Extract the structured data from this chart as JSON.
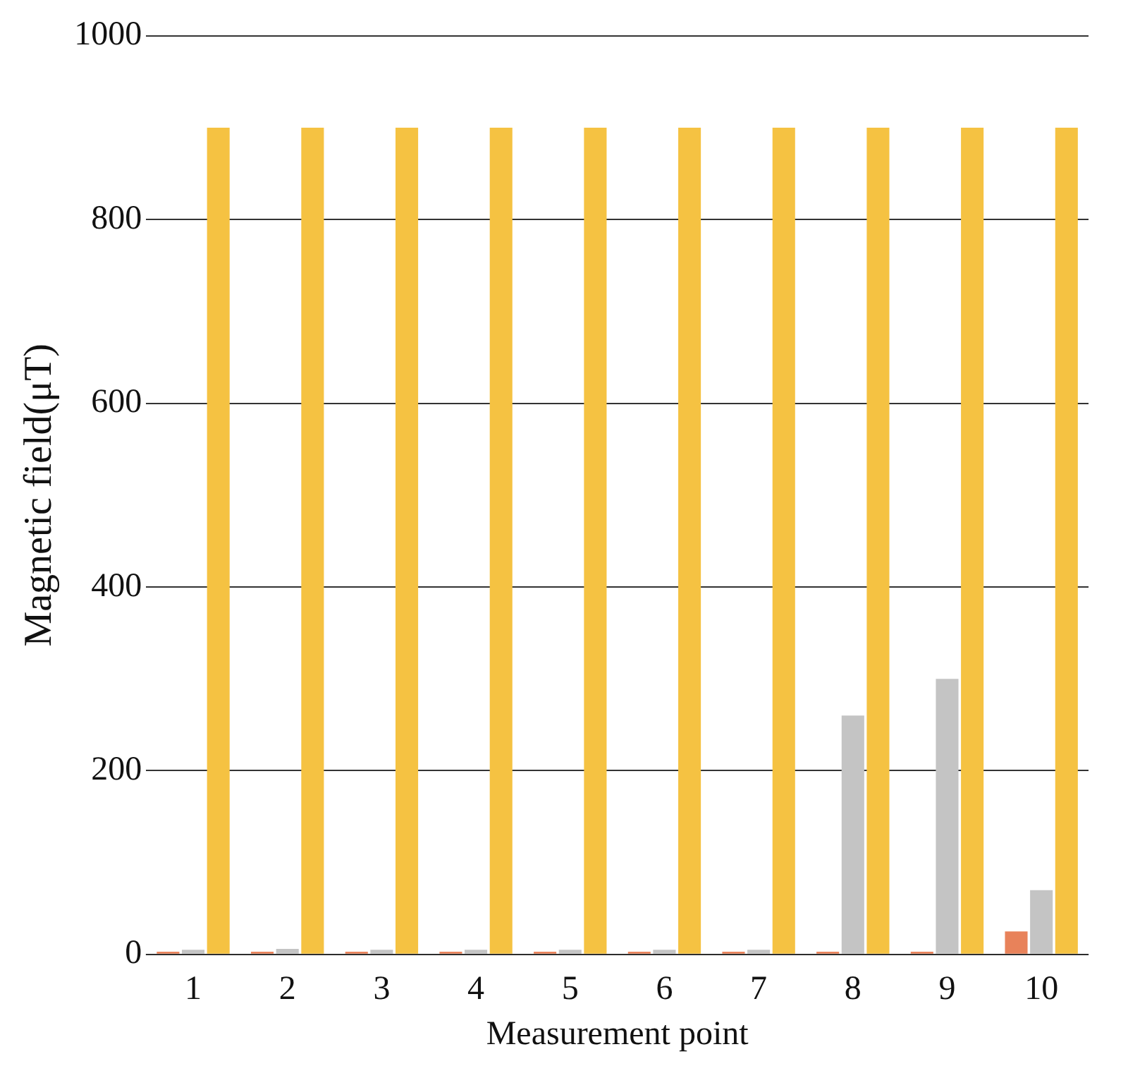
{
  "chart_data": {
    "type": "bar",
    "xlabel": "Measurement point",
    "ylabel": "Magnetic field(μT)",
    "categories": [
      "1",
      "2",
      "3",
      "4",
      "5",
      "6",
      "7",
      "8",
      "9",
      "10"
    ],
    "series": [
      {
        "color": "#e8825a",
        "values": [
          3,
          3,
          3,
          3,
          3,
          3,
          3,
          3,
          3,
          25
        ]
      },
      {
        "color": "#c4c4c4",
        "values": [
          5,
          6,
          5,
          5,
          5,
          5,
          5,
          260,
          300,
          70
        ]
      },
      {
        "color": "#f5c242",
        "values": [
          900,
          900,
          900,
          900,
          900,
          900,
          900,
          900,
          900,
          900
        ]
      }
    ],
    "ylim": [
      0,
      1000
    ],
    "yticks": [
      0,
      200,
      400,
      600,
      800,
      1000
    ],
    "grid": "y",
    "legend": false
  }
}
